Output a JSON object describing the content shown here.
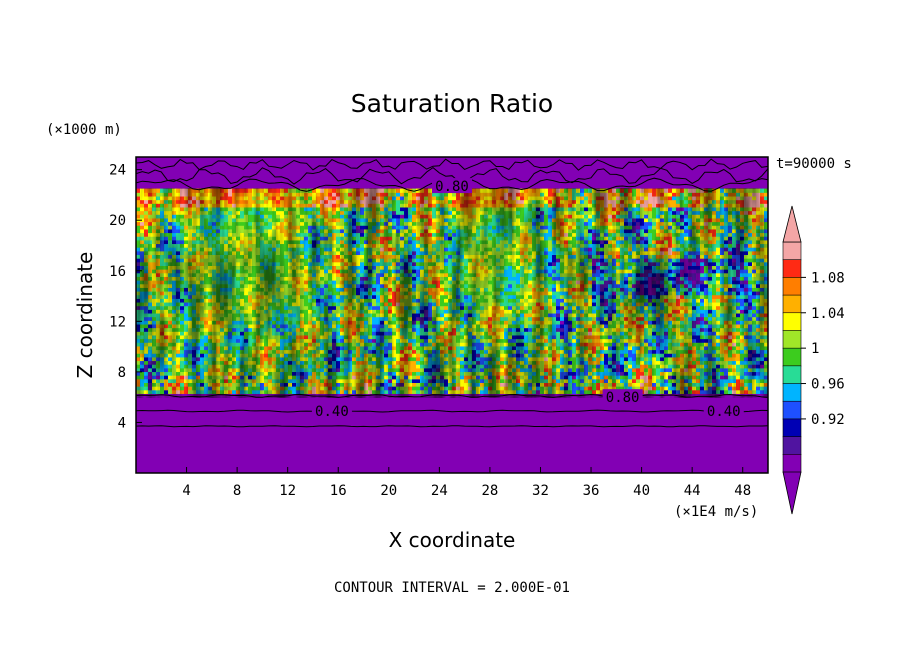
{
  "chart_data": {
    "type": "heatmap",
    "title": "Saturation Ratio",
    "xlabel": "X coordinate",
    "ylabel": "Z coordinate",
    "x_unit": "(×1E4 m/s)",
    "y_unit": "(×1000 m)",
    "time_label": "t=90000 s",
    "footer": "CONTOUR INTERVAL = 2.000E-01",
    "xlim": [
      0,
      50
    ],
    "ylim": [
      0,
      25
    ],
    "x_ticks": [
      4,
      8,
      12,
      16,
      20,
      24,
      28,
      32,
      36,
      40,
      44,
      48
    ],
    "y_ticks": [
      4,
      8,
      12,
      16,
      20,
      24
    ],
    "contour_labels": [
      {
        "text": "0.40",
        "x": 15.5,
        "y": 4.9
      },
      {
        "text": "0.40",
        "x": 46.5,
        "y": 4.9
      },
      {
        "text": "0.80",
        "x": 38.5,
        "y": 6.0
      },
      {
        "text": "0.80",
        "x": 25,
        "y": 22.7
      }
    ],
    "colorbar": {
      "labels": [
        "1.08",
        "1.04",
        "1",
        "0.96",
        "0.92"
      ],
      "levels": [
        1.08,
        1.04,
        1.0,
        0.96,
        0.92
      ],
      "colors": [
        "#f4a6a6",
        "#ff2a14",
        "#ff7e00",
        "#ffb000",
        "#ffff00",
        "#a0e628",
        "#3ccc1e",
        "#28dc96",
        "#00b4ff",
        "#1e50ff",
        "#0000b4",
        "#5014a0",
        "#8200b4"
      ]
    },
    "regions": {
      "low_value_color": "#8200b4",
      "lower_uniform_top": 6.3,
      "upper_uniform_bottom": 22.5
    }
  }
}
